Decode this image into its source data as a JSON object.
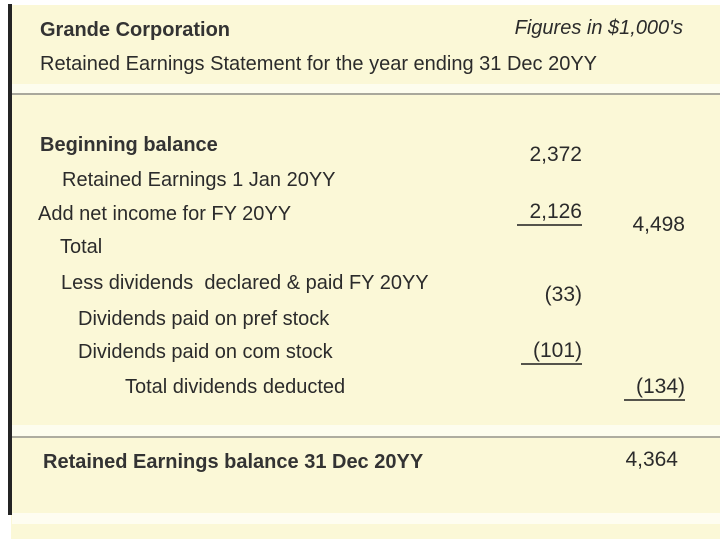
{
  "colors": {
    "sheet_background": "#fbf8d7",
    "page_background": "#ffffff",
    "left_border_line": "#242424",
    "divider_line": "#a9a89c",
    "divider_band": "#fdfdee",
    "text": "#2b2b2b",
    "underline": "#55544c"
  },
  "header": {
    "company": "Grande Corporation",
    "figures_note": "Figures in $1,000's",
    "subtitle": "Retained Earnings Statement for the year ending 31 Dec 20YY"
  },
  "body": {
    "rows": [
      {
        "label": "Beginning balance"
      },
      {
        "label": "Retained Earnings 1 Jan 20YY"
      },
      {
        "label": "Add net income for FY 20YY"
      },
      {
        "label": "Total"
      },
      {
        "label": "Less dividends  declared & paid FY 20YY"
      },
      {
        "label": "Dividends paid on pref stock"
      },
      {
        "label": "Dividends paid on com stock"
      },
      {
        "label": "Total dividends deducted"
      }
    ],
    "values": [
      {
        "name": "retained_earnings_1_jan",
        "amount": "2,372"
      },
      {
        "name": "net_income",
        "amount": "2,126"
      },
      {
        "name": "total",
        "amount": "4,498"
      },
      {
        "name": "dividends_pref_stock",
        "amount": "(33)"
      },
      {
        "name": "dividends_com_stock",
        "amount": "(101)"
      },
      {
        "name": "total_dividends",
        "amount": "(134)"
      }
    ]
  },
  "footer": {
    "label": "Retained Earnings balance 31 Dec 20YY",
    "amount": "4,364"
  }
}
